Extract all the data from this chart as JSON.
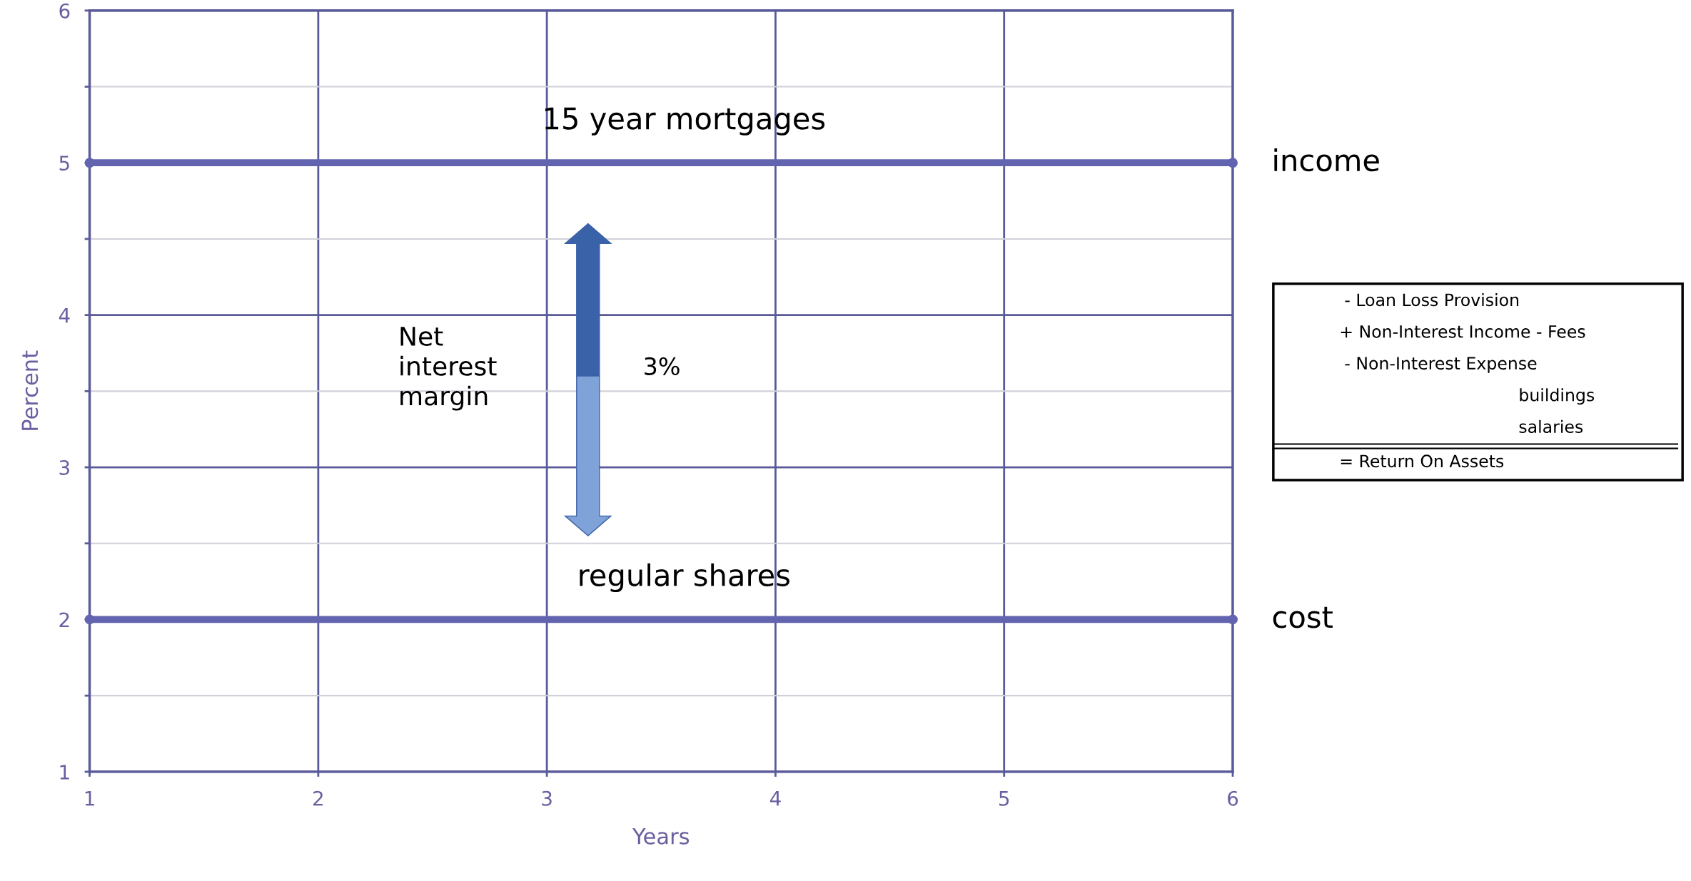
{
  "chart_data": {
    "type": "line",
    "xlabel": "Years",
    "ylabel": "Percent",
    "x": [
      1,
      6
    ],
    "series": [
      {
        "name": "income",
        "color": "#6264b0",
        "values": [
          5,
          5
        ]
      },
      {
        "name": "cost",
        "color": "#6264b0",
        "values": [
          2,
          2
        ]
      }
    ],
    "xlim": [
      1,
      6
    ],
    "ylim": [
      1,
      6
    ],
    "xticks": [
      1,
      2,
      3,
      4,
      5,
      6
    ],
    "yticks": [
      1,
      {
        "value": 1.5,
        "label": null
      },
      2,
      {
        "value": 2.5,
        "label": null
      },
      3,
      {
        "value": 3.5,
        "label": null
      },
      4,
      {
        "value": 4.5,
        "label": null
      },
      5,
      {
        "value": 5.5,
        "label": null
      },
      6
    ],
    "grid": true,
    "marker": "circle",
    "line_style": "solid",
    "annotations": [
      {
        "text": "15 year mortgages",
        "x": 3.6,
        "y": 5
      },
      {
        "text": "regular shares",
        "x": 3.6,
        "y": 2
      },
      "Net interest margin",
      "3%",
      "- Loan Loss Provision",
      "+ Non-Interest Income - Fees",
      "- Non-Interest Expense",
      "buildings",
      "salaries",
      "= Return On Assets"
    ]
  }
}
